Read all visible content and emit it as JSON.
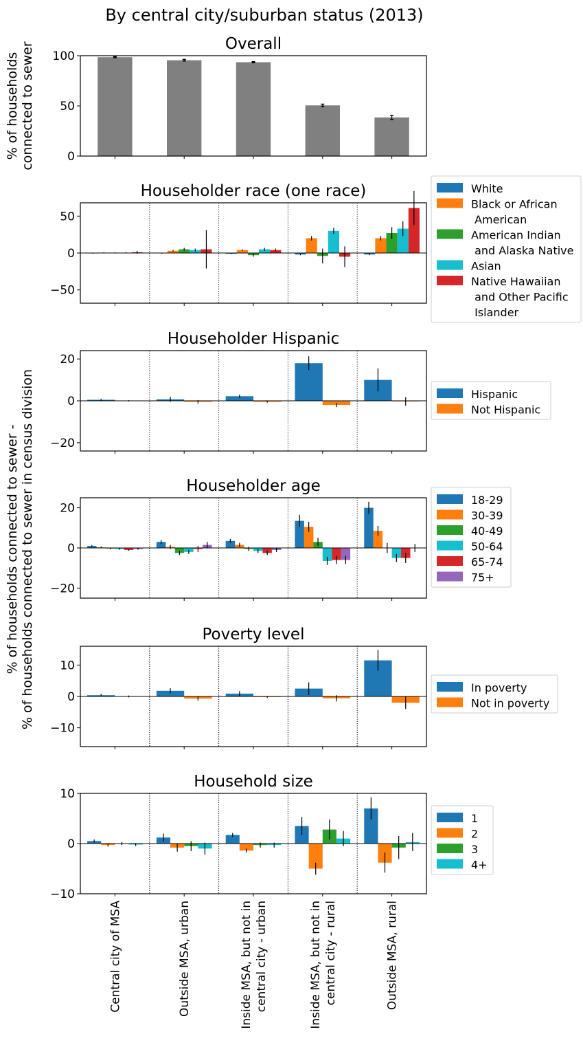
{
  "figure_title": "By central city/suburban status (2013)",
  "ylabel_top": [
    "% of households",
    "connected to sewer"
  ],
  "ylabel_main": [
    "% of households connected to sewer -",
    "% of households connected to sewer in census division"
  ],
  "categories": [
    [
      "Central city of MSA"
    ],
    [
      "Outside MSA, urban"
    ],
    [
      "Inside MSA, but not in",
      "central city - urban"
    ],
    [
      "Inside MSA, but not in",
      "central city - rural"
    ],
    [
      "Outside MSA, rural"
    ]
  ],
  "colors": {
    "gray": "#808080",
    "blue": "#1f77b4",
    "orange": "#ff7f0e",
    "green": "#2ca02c",
    "cyan": "#17becf",
    "red": "#d62728",
    "purple": "#9467bd"
  },
  "chart_data": [
    {
      "type": "bar",
      "title": "Overall",
      "ylim": [
        0,
        100
      ],
      "yticks": [
        "0",
        "50",
        "100"
      ],
      "ytick_values": [
        0,
        50,
        100
      ],
      "grid": false,
      "series": [
        {
          "color": "#808080",
          "values": [
            98.5,
            95.5,
            93.5,
            50.5,
            38.5
          ],
          "errors": [
            0.5,
            0.8,
            0.5,
            1.2,
            2.0
          ]
        }
      ]
    },
    {
      "type": "bar",
      "title": "Householder race (one race)",
      "ylim": [
        -68,
        68
      ],
      "yticks": [
        "−50",
        "0",
        "50"
      ],
      "ytick_values": [
        -50,
        0,
        50
      ],
      "grid": false,
      "legend_position": "right",
      "series": [
        {
          "name": "White",
          "color": "#1f77b4",
          "values": [
            -0.5,
            -0.5,
            -1,
            -2,
            -2
          ],
          "errors": [
            0.4,
            0.4,
            0.4,
            1,
            1
          ]
        },
        {
          "name": "Black or African\n American",
          "color": "#ff7f0e",
          "values": [
            0.5,
            3,
            4,
            20,
            20
          ],
          "errors": [
            0.5,
            1,
            1,
            3,
            3
          ]
        },
        {
          "name": "American Indian\n and Alaska Native",
          "color": "#2ca02c",
          "values": [
            0.5,
            5,
            -3,
            -4,
            27
          ],
          "errors": [
            0.5,
            2,
            2,
            10,
            8
          ]
        },
        {
          "name": "Asian",
          "color": "#17becf",
          "values": [
            0.5,
            4,
            5,
            30,
            33
          ],
          "errors": [
            0.5,
            2,
            2,
            4,
            10
          ]
        },
        {
          "name": "Native Hawaiian\n and Other Pacific\n Islander",
          "color": "#d62728",
          "values": [
            1,
            5,
            4,
            -5,
            61
          ],
          "errors": [
            2,
            26,
            2,
            14,
            23
          ]
        }
      ]
    },
    {
      "type": "bar",
      "title": "Householder Hispanic",
      "ylim": [
        -24,
        24
      ],
      "yticks": [
        "−20",
        "0",
        "20"
      ],
      "ytick_values": [
        -20,
        0,
        20
      ],
      "grid": false,
      "legend_position": "right",
      "series": [
        {
          "name": "Hispanic",
          "color": "#1f77b4",
          "values": [
            0.5,
            0.7,
            2.2,
            18,
            10
          ],
          "errors": [
            0.4,
            1.2,
            0.8,
            3.3,
            5.5
          ]
        },
        {
          "name": "Not Hispanic",
          "color": "#ff7f0e",
          "values": [
            0,
            -0.5,
            -0.5,
            -2,
            -0.3
          ],
          "errors": [
            0.3,
            0.8,
            0.4,
            1,
            2
          ]
        }
      ]
    },
    {
      "type": "bar",
      "title": "Householder age",
      "ylim": [
        -25,
        25
      ],
      "yticks": [
        "−20",
        "0",
        "20"
      ],
      "ytick_values": [
        -20,
        0,
        20
      ],
      "grid": false,
      "legend_position": "right",
      "series": [
        {
          "name": "18-29",
          "color": "#1f77b4",
          "values": [
            1,
            3,
            3.5,
            13.5,
            20
          ],
          "errors": [
            0.4,
            1,
            1,
            3,
            3
          ]
        },
        {
          "name": "30-39",
          "color": "#ff7f0e",
          "values": [
            0.3,
            0.5,
            1.5,
            10.5,
            8.5
          ],
          "errors": [
            0.4,
            1,
            1,
            2.5,
            2.5
          ]
        },
        {
          "name": "40-49",
          "color": "#2ca02c",
          "values": [
            -0.3,
            -2.5,
            -0.5,
            3,
            0
          ],
          "errors": [
            0.4,
            1,
            1,
            2,
            2.5
          ]
        },
        {
          "name": "50-64",
          "color": "#17becf",
          "values": [
            -0.5,
            -2,
            -1.5,
            -6.5,
            -5
          ],
          "errors": [
            0.4,
            1,
            1,
            2,
            2
          ]
        },
        {
          "name": "65-74",
          "color": "#d62728",
          "values": [
            -1,
            -0.5,
            -2.5,
            -6,
            -5
          ],
          "errors": [
            0.4,
            1.5,
            1,
            2,
            2.5
          ]
        },
        {
          "name": "75+",
          "color": "#9467bd",
          "values": [
            -0.5,
            1.5,
            -1,
            -6,
            0
          ],
          "errors": [
            0.4,
            1.5,
            1,
            2,
            2
          ]
        }
      ]
    },
    {
      "type": "bar",
      "title": "Poverty level",
      "ylim": [
        -16,
        16
      ],
      "yticks": [
        "−10",
        "0",
        "10"
      ],
      "ytick_values": [
        -10,
        0,
        10
      ],
      "grid": false,
      "legend_position": "right",
      "series": [
        {
          "name": "In poverty",
          "color": "#1f77b4",
          "values": [
            0.4,
            1.8,
            0.9,
            2.5,
            11.5
          ],
          "errors": [
            0.4,
            0.8,
            0.8,
            2,
            3.3
          ]
        },
        {
          "name": "Not in poverty",
          "color": "#ff7f0e",
          "values": [
            0,
            -0.7,
            -0.2,
            -0.6,
            -2
          ],
          "errors": [
            0.3,
            0.6,
            0.3,
            1,
            2
          ]
        }
      ]
    },
    {
      "type": "bar",
      "title": "Household size",
      "ylim": [
        -10,
        10
      ],
      "yticks": [
        "−10",
        "0",
        "10"
      ],
      "ytick_values": [
        -10,
        0,
        10
      ],
      "grid": false,
      "legend_position": "right",
      "series": [
        {
          "name": "1",
          "color": "#1f77b4",
          "values": [
            0.5,
            1.2,
            1.7,
            3.5,
            7
          ],
          "errors": [
            0.3,
            0.8,
            0.4,
            1.8,
            2.2
          ]
        },
        {
          "name": "2",
          "color": "#ff7f0e",
          "values": [
            -0.3,
            -0.8,
            -1.4,
            -5,
            -3.8
          ],
          "errors": [
            0.3,
            0.8,
            0.4,
            1.2,
            2
          ]
        },
        {
          "name": "3",
          "color": "#2ca02c",
          "values": [
            0,
            -0.5,
            -0.3,
            2.8,
            -0.8
          ],
          "errors": [
            0.3,
            1,
            0.5,
            2,
            2.3
          ]
        },
        {
          "name": "4+",
          "color": "#17becf",
          "values": [
            -0.2,
            -1,
            -0.3,
            1,
            0.3
          ],
          "errors": [
            0.3,
            1.2,
            0.5,
            1.5,
            1.8
          ]
        }
      ]
    }
  ]
}
